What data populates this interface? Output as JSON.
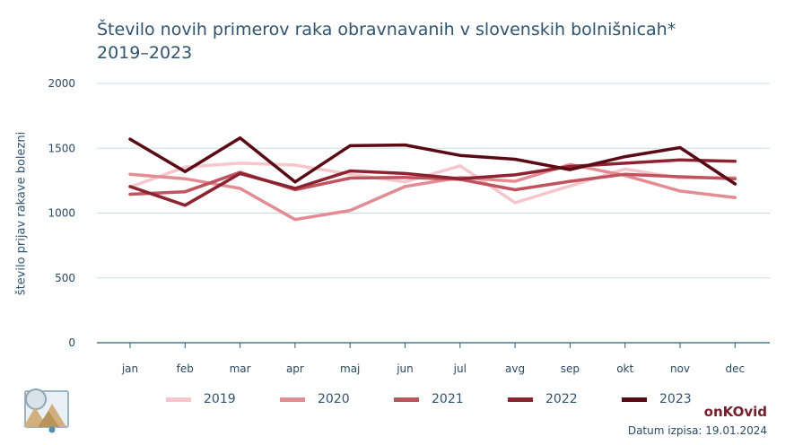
{
  "title_line1": "Število novih primerov raka obravnavanih v slovenskih bolnišnicah*",
  "title_line2": "2019–2023",
  "brand": "onKOvid",
  "date_label": "Datum izpisa: 19.01.2024",
  "chart_data": {
    "type": "line",
    "title": "Število novih primerov raka obravnavanih v slovenskih bolnišnicah*",
    "subtitle": "2019–2023",
    "xlabel": "",
    "ylabel": "število prijav rakave bolezni",
    "categories": [
      "jan",
      "feb",
      "mar",
      "apr",
      "maj",
      "jun",
      "jul",
      "avg",
      "sep",
      "okt",
      "nov",
      "dec"
    ],
    "ylim": [
      0,
      2000
    ],
    "yticks": [
      0,
      500,
      1000,
      1500,
      2000
    ],
    "grid": true,
    "legend_position": "bottom",
    "series": [
      {
        "name": "2019",
        "color": "#f7c6cc",
        "values": [
          1200,
          1355,
          1385,
          1370,
          1300,
          1240,
          1365,
          1080,
          1210,
          1340,
          1270,
          1275
        ]
      },
      {
        "name": "2020",
        "color": "#e38c93",
        "values": [
          1300,
          1265,
          1190,
          950,
          1020,
          1205,
          1275,
          1245,
          1375,
          1290,
          1170,
          1120
        ]
      },
      {
        "name": "2021",
        "color": "#c0535d",
        "values": [
          1145,
          1165,
          1315,
          1180,
          1270,
          1275,
          1260,
          1180,
          1245,
          1300,
          1280,
          1265
        ]
      },
      {
        "name": "2022",
        "color": "#8c2330",
        "values": [
          1205,
          1060,
          1305,
          1190,
          1325,
          1305,
          1265,
          1295,
          1360,
          1385,
          1410,
          1400
        ]
      },
      {
        "name": "2023",
        "color": "#5a0a12",
        "values": [
          1570,
          1320,
          1580,
          1240,
          1520,
          1525,
          1445,
          1415,
          1335,
          1435,
          1505,
          1225
        ]
      }
    ]
  }
}
